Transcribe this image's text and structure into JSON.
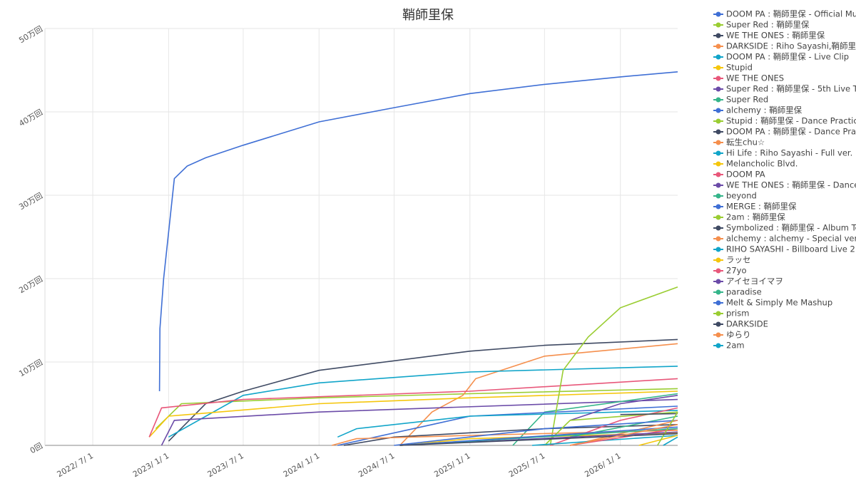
{
  "chart_data": {
    "type": "line",
    "title": "鞘師里保",
    "xlim": [
      "2022-03-07",
      "2026-05-20"
    ],
    "xticks": [
      {
        "value": "2022-07-01",
        "label": "2022/ 7/ 1"
      },
      {
        "value": "2023-01-01",
        "label": "2023/ 1/ 1"
      },
      {
        "value": "2023-07-01",
        "label": "2023/ 7/ 1"
      },
      {
        "value": "2024-01-01",
        "label": "2024/ 1/ 1"
      },
      {
        "value": "2024-07-01",
        "label": "2024/ 7/ 1"
      },
      {
        "value": "2025-01-01",
        "label": "2025/ 1/ 1"
      },
      {
        "value": "2025-07-01",
        "label": "2025/ 7/ 1"
      },
      {
        "value": "2026-01-01",
        "label": "2026/ 1/ 1"
      }
    ],
    "ylim": [
      0,
      500000
    ],
    "yticks": [
      {
        "value": 0,
        "label": "0回"
      },
      {
        "value": 100000,
        "label": "10万回"
      },
      {
        "value": 200000,
        "label": "20万回"
      },
      {
        "value": 300000,
        "label": "30万回"
      },
      {
        "value": 400000,
        "label": "40万回"
      },
      {
        "value": 500000,
        "label": "50万回"
      }
    ],
    "grid": true,
    "legend": "right",
    "series": [
      {
        "name": "DOOM PA : 鞘師里保 - Official Mu...",
        "color": "#3f6fd5",
        "x": [
          "2022-12-10",
          "2022-12-11",
          "2022-12-20",
          "2023-01-15",
          "2023-02-15",
          "2023-04-01",
          "2023-07-01",
          "2024-01-01",
          "2024-07-01",
          "2025-01-01",
          "2025-07-01",
          "2026-01-01",
          "2026-05-20"
        ],
        "values": [
          65000,
          140000,
          200000,
          320000,
          335000,
          345000,
          360000,
          388000,
          405000,
          422000,
          433000,
          442000,
          448000
        ]
      },
      {
        "name": "Super Red : 鞘師里保",
        "color": "#9acd32",
        "x": [
          "2022-12-01",
          "2023-02-01",
          "2024-01-01",
          "2025-01-01",
          "2026-05-20"
        ],
        "values": [
          20000,
          50000,
          57000,
          62000,
          68000
        ]
      },
      {
        "name": "WE THE ONES : 鞘師里保",
        "color": "#3f4a63",
        "x": [
          "2023-01-01",
          "2023-04-01",
          "2023-07-01",
          "2024-01-01",
          "2025-01-01",
          "2025-07-01",
          "2026-05-20"
        ],
        "values": [
          5000,
          50000,
          65000,
          90000,
          113000,
          120000,
          127000
        ]
      },
      {
        "name": "DARKSIDE : Riho Sayashi,鞘師里保",
        "color": "#f58f4d",
        "x": [
          "2024-07-15",
          "2024-10-01",
          "2024-12-15",
          "2025-01-15",
          "2025-07-01",
          "2026-05-20"
        ],
        "values": [
          0,
          40000,
          60000,
          80000,
          107000,
          122000
        ]
      },
      {
        "name": "DOOM PA : 鞘師里保 - Live Clip",
        "color": "#11a5c9",
        "x": [
          "2023-01-01",
          "2023-07-01",
          "2024-01-01",
          "2025-01-01",
          "2026-05-20"
        ],
        "values": [
          10000,
          60000,
          75000,
          88000,
          95000
        ]
      },
      {
        "name": "Stupid",
        "color": "#f5c60d",
        "x": [
          "2022-11-15",
          "2023-01-01",
          "2024-01-01",
          "2025-01-01",
          "2026-05-20"
        ],
        "values": [
          10000,
          35000,
          50000,
          57000,
          65000
        ]
      },
      {
        "name": "WE THE ONES",
        "color": "#e8577a",
        "x": [
          "2022-11-15",
          "2022-12-15",
          "2023-07-01",
          "2025-01-01",
          "2026-05-20"
        ],
        "values": [
          10000,
          45000,
          55000,
          65000,
          80000
        ]
      },
      {
        "name": "Super Red : 鞘師里保 - 5th Live T...",
        "color": "#6b4ba8",
        "x": [
          "2022-12-15",
          "2023-01-15",
          "2024-01-01",
          "2026-05-20"
        ],
        "values": [
          0,
          30000,
          40000,
          55000
        ]
      },
      {
        "name": "Super Red",
        "color": "#35b58a",
        "x": [
          "2025-04-15",
          "2025-07-01",
          "2026-05-20"
        ],
        "values": [
          0,
          40000,
          62000
        ]
      },
      {
        "name": "alchemy : 鞘師里保",
        "color": "#3f6fd5",
        "x": [
          "2024-02-15",
          "2024-10-01",
          "2025-01-01",
          "2026-05-20"
        ],
        "values": [
          0,
          25000,
          35000,
          47000
        ]
      },
      {
        "name": "Stupid : 鞘師里保 - Dance Practice",
        "color": "#9acd32",
        "x": [
          "2025-07-15",
          "2025-08-15",
          "2025-10-15",
          "2026-01-01",
          "2026-05-20"
        ],
        "values": [
          0,
          90000,
          130000,
          165000,
          190000
        ]
      },
      {
        "name": "DOOM PA : 鞘師里保 - Dance Pra...",
        "color": "#3f4a63",
        "x": [
          "2024-03-01",
          "2024-07-01",
          "2025-07-01",
          "2026-05-20"
        ],
        "values": [
          0,
          10000,
          20000,
          25000
        ]
      },
      {
        "name": "転生chu☆",
        "color": "#f58f4d",
        "x": [
          "2024-02-01",
          "2024-04-01",
          "2025-01-01",
          "2026-05-20"
        ],
        "values": [
          0,
          8000,
          12000,
          18000
        ]
      },
      {
        "name": "Hi Life : Riho Sayashi - Full ver.",
        "color": "#11a5c9",
        "x": [
          "2024-02-15",
          "2024-04-01",
          "2025-01-01",
          "2026-05-20"
        ],
        "values": [
          10000,
          20000,
          35000,
          42000
        ]
      },
      {
        "name": "Melancholic Blvd.",
        "color": "#f5c60d",
        "x": [
          "2024-07-20",
          "2025-01-01",
          "2026-05-20"
        ],
        "values": [
          0,
          8000,
          15000
        ]
      },
      {
        "name": "DOOM PA",
        "color": "#e8577a",
        "x": [
          "2025-07-15",
          "2026-01-01",
          "2026-05-20"
        ],
        "values": [
          0,
          30000,
          45000
        ]
      },
      {
        "name": "WE THE ONES : 鞘師里保 - Dance ...",
        "color": "#6b4ba8",
        "x": [
          "2025-09-01",
          "2026-01-01",
          "2026-05-20"
        ],
        "values": [
          30000,
          50000,
          60000
        ]
      },
      {
        "name": "beyond",
        "color": "#35b58a",
        "x": [
          "2025-09-01",
          "2026-05-20"
        ],
        "values": [
          10000,
          35000
        ]
      },
      {
        "name": "MERGE : 鞘師里保",
        "color": "#3f6fd5",
        "x": [
          "2024-07-01",
          "2025-07-01",
          "2026-05-20"
        ],
        "values": [
          0,
          20000,
          30000
        ]
      },
      {
        "name": "2am : 鞘師里保",
        "color": "#9acd32",
        "x": [
          "2025-07-01",
          "2025-09-01",
          "2026-05-20"
        ],
        "values": [
          0,
          30000,
          40000
        ]
      },
      {
        "name": "Symbolized : 鞘師里保 - Album Te...",
        "color": "#3f4a63",
        "x": [
          "2026-01-01",
          "2026-05-20"
        ],
        "values": [
          37000,
          38000
        ]
      },
      {
        "name": "alchemy : alchemy - Special ver.",
        "color": "#f58f4d",
        "x": [
          "2025-09-01",
          "2026-05-20"
        ],
        "values": [
          0,
          30000
        ]
      },
      {
        "name": "RIHO SAYASHI - Billboard Live 2...",
        "color": "#11a5c9",
        "x": [
          "2025-06-01",
          "2026-05-20"
        ],
        "values": [
          0,
          12000
        ]
      },
      {
        "name": "ラッセ",
        "color": "#f5c60d",
        "x": [
          "2026-02-15",
          "2026-05-20"
        ],
        "values": [
          0,
          12000
        ]
      },
      {
        "name": "27yo",
        "color": "#e8577a",
        "x": [
          "2025-09-01",
          "2026-05-20"
        ],
        "values": [
          0,
          20000
        ]
      },
      {
        "name": "アイセヨイマヲ",
        "color": "#6b4ba8",
        "x": [
          "2024-07-15",
          "2026-05-20"
        ],
        "values": [
          0,
          16000
        ]
      },
      {
        "name": "paradise",
        "color": "#35b58a",
        "x": [
          "2024-07-15",
          "2026-05-20"
        ],
        "values": [
          0,
          20000
        ]
      },
      {
        "name": "Melt & Simply Me Mashup",
        "color": "#3f6fd5",
        "x": [
          "2024-07-15",
          "2026-05-20"
        ],
        "values": [
          0,
          22000
        ]
      },
      {
        "name": "prism",
        "color": "#9acd32",
        "x": [
          "2026-04-01",
          "2026-05-20"
        ],
        "values": [
          0,
          40000
        ]
      },
      {
        "name": "DARKSIDE",
        "color": "#3f4a63",
        "x": [
          "2024-07-15",
          "2026-05-20"
        ],
        "values": [
          0,
          14000
        ]
      },
      {
        "name": "ゆらり",
        "color": "#f58f4d",
        "x": [
          "2025-09-01",
          "2026-05-20"
        ],
        "values": [
          0,
          25000
        ]
      },
      {
        "name": "2am",
        "color": "#11a5c9",
        "x": [
          "2026-04-15",
          "2026-05-20"
        ],
        "values": [
          0,
          10000
        ]
      }
    ]
  }
}
